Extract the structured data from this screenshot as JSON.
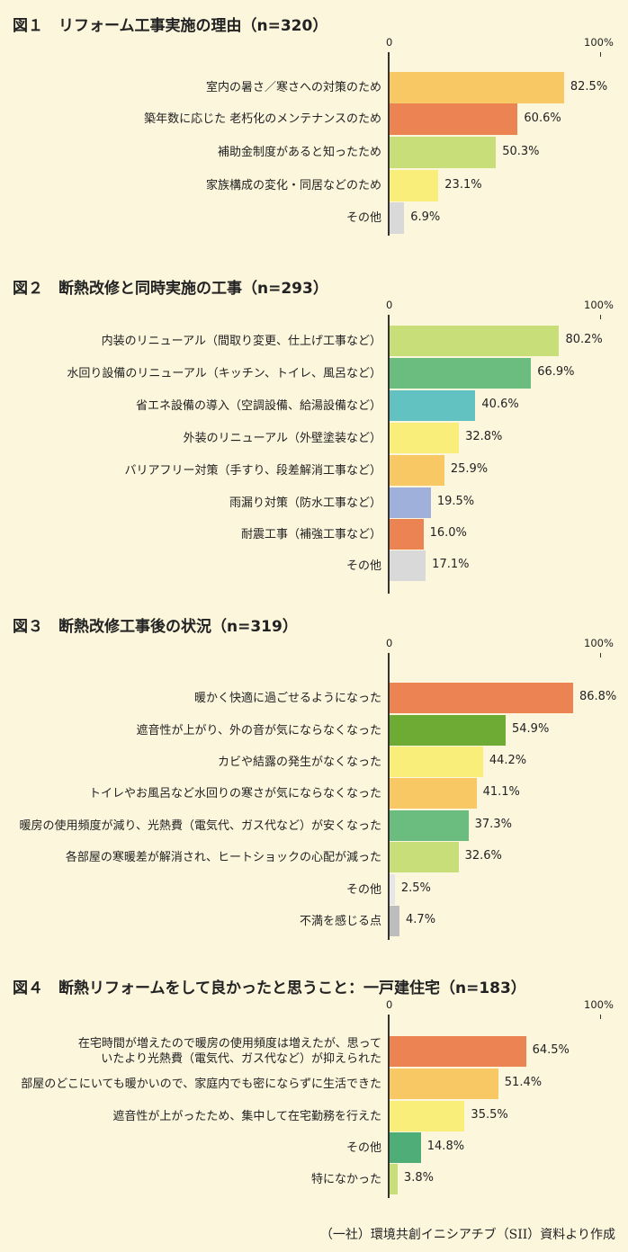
{
  "chart_data": [
    {
      "type": "bar",
      "title": "図１　リフォーム工事実施の理由（n=320）",
      "axis_min_label": "0",
      "axis_max_label": "100%",
      "xlim": [
        0,
        100
      ],
      "categories": [
        "室内の暑さ／寒さへの対策のため",
        "築年数に応じた 老朽化のメンテナンスのため",
        "補助金制度があると知ったため",
        "家族構成の変化・同居などのため",
        "その他"
      ],
      "values": [
        82.5,
        60.6,
        50.3,
        23.1,
        6.9
      ],
      "value_labels": [
        "82.5%",
        "60.6%",
        "50.3%",
        "23.1%",
        "6.9%"
      ],
      "colors": [
        "#f8c865",
        "#ec8352",
        "#c8de79",
        "#f9ee79",
        "#d9d9d9"
      ]
    },
    {
      "type": "bar",
      "title": "図２　断熱改修と同時実施の工事（n=293）",
      "axis_min_label": "0",
      "axis_max_label": "100%",
      "xlim": [
        0,
        100
      ],
      "categories": [
        "内装のリニューアル（間取り変更、仕上げ工事など）",
        "水回り設備のリニューアル（キッチン、トイレ、風呂など）",
        "省エネ設備の導入（空調設備、給湯設備など）",
        "外装のリニューアル（外壁塗装など）",
        "バリアフリー対策（手すり、段差解消工事など）",
        "雨漏り対策（防水工事など）",
        "耐震工事（補強工事など）",
        "その他"
      ],
      "values": [
        80.2,
        66.9,
        40.6,
        32.8,
        25.9,
        19.5,
        16.0,
        17.1
      ],
      "value_labels": [
        "80.2%",
        "66.9%",
        "40.6%",
        "32.8%",
        "25.9%",
        "19.5%",
        "16.0%",
        "17.1%"
      ],
      "colors": [
        "#c8de79",
        "#6bbc7f",
        "#62c2c2",
        "#f9ee79",
        "#f8c865",
        "#9fb1db",
        "#ec8352",
        "#d9d9d9"
      ]
    },
    {
      "type": "bar",
      "title": "図３　断熱改修工事後の状況（n=319）",
      "axis_min_label": "0",
      "axis_max_label": "100%",
      "xlim": [
        0,
        100
      ],
      "categories": [
        "暖かく快適に過ごせるようになった",
        "遮音性が上がり、外の音が気にならなくなった",
        "カビや結露の発生がなくなった",
        "トイレやお風呂など水回りの寒さが気にならなくなった",
        "暖房の使用頻度が減り、光熱費（電気代、ガス代など）が安くなった",
        "各部屋の寒暖差が解消され、ヒートショックの心配が減った",
        "その他",
        "不満を感じる点"
      ],
      "values": [
        86.8,
        54.9,
        44.2,
        41.1,
        37.3,
        32.6,
        2.5,
        4.7
      ],
      "value_labels": [
        "86.8%",
        "54.9%",
        "44.2%",
        "41.1%",
        "37.3%",
        "32.6%",
        "2.5%",
        "4.7%"
      ],
      "colors": [
        "#ec8352",
        "#6eab35",
        "#f9ee79",
        "#f8c865",
        "#6bbc7f",
        "#c8de79",
        "#e6e6e6",
        "#bdbdbd"
      ]
    },
    {
      "type": "bar",
      "title": "図４　断熱リフォームをして良かったと思うこと：一戸建住宅（n=183）",
      "axis_min_label": "0",
      "axis_max_label": "100%",
      "xlim": [
        0,
        100
      ],
      "categories": [
        "在宅時間が増えたので暖房の使用頻度は増えたが、思って\nいたより光熱費（電気代、ガス代など）が抑えられた",
        "部屋のどこにいても暖かいので、家庭内でも密にならずに生活できた",
        "遮音性が上がったため、集中して在宅勤務を行えた",
        "その他",
        "特になかった"
      ],
      "values": [
        64.5,
        51.4,
        35.5,
        14.8,
        3.8
      ],
      "value_labels": [
        "64.5%",
        "51.4%",
        "35.5%",
        "14.8%",
        "3.8%"
      ],
      "colors": [
        "#ec8352",
        "#f8c865",
        "#f9ee79",
        "#4fad77",
        "#c8de79"
      ]
    }
  ],
  "source": "（一社）環境共創イニシアチブ（SII）資料より作成"
}
